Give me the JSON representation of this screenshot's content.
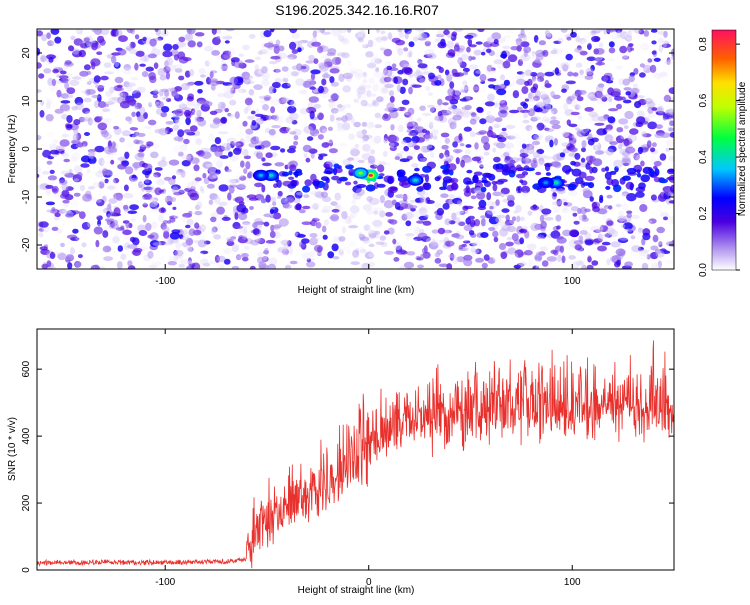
{
  "title": "S196.2025.342.16.16.R07",
  "chart_data": [
    {
      "type": "heatmap",
      "xlabel": "Height of straight line (km)",
      "ylabel": "Frequency (Hz)",
      "xlim": [
        -163,
        150
      ],
      "ylim": [
        -25,
        25
      ],
      "xticks": [
        -100,
        0,
        100
      ],
      "yticks": [
        -20,
        -10,
        0,
        10,
        20
      ],
      "colorbar": {
        "label": "Normalized spectral amplitude",
        "range": [
          0,
          0.85
        ],
        "ticks": [
          0.0,
          0.2,
          0.4,
          0.6,
          0.8
        ],
        "tick_labels": [
          "0.0",
          "0.2",
          "0.4",
          "0.6",
          "0.8"
        ]
      },
      "band": {
        "frequency_center": -6,
        "frequency_halfwidth": 2.5,
        "x_start": -55
      },
      "peaks": [
        {
          "x": 1,
          "y": -5.5,
          "amp": 0.85
        },
        {
          "x": -4,
          "y": -5.0,
          "amp": 0.55
        },
        {
          "x": -48,
          "y": -5.5,
          "amp": 0.4
        },
        {
          "x": -53,
          "y": -5.5,
          "amp": 0.35
        },
        {
          "x": 23,
          "y": -6.5,
          "amp": 0.4
        },
        {
          "x": 92,
          "y": -7.0,
          "amp": 0.42
        },
        {
          "x": 87,
          "y": -7.0,
          "amp": 0.33
        }
      ]
    },
    {
      "type": "line",
      "xlabel": "Height of straight line (km)",
      "ylabel": "SNR (10 * v/v)",
      "xlim": [
        -163,
        150
      ],
      "ylim": [
        0,
        720
      ],
      "xticks": [
        -100,
        0,
        100
      ],
      "yticks": [
        0,
        200,
        400,
        600
      ],
      "color": "#e8302c",
      "series": [
        {
          "x": [
            -163,
            -150,
            -140,
            -130,
            -120,
            -110,
            -100,
            -90,
            -80,
            -70,
            -65,
            -60,
            -57,
            -55,
            -50,
            -45,
            -40,
            -35,
            -30,
            -25,
            -20,
            -15,
            -10,
            -5,
            0,
            5,
            10,
            15,
            20,
            25,
            30,
            40,
            50,
            60,
            70,
            80,
            90,
            100,
            110,
            120,
            130,
            140,
            150
          ],
          "values": [
            18,
            20,
            19,
            21,
            20,
            19,
            20,
            21,
            22,
            23,
            24,
            30,
            55,
            85,
            115,
            140,
            165,
            185,
            205,
            225,
            240,
            255,
            270,
            300,
            340,
            375,
            395,
            410,
            420,
            425,
            430,
            435,
            440,
            445,
            448,
            450,
            452,
            455,
            458,
            460,
            462,
            465,
            468
          ]
        }
      ]
    }
  ]
}
